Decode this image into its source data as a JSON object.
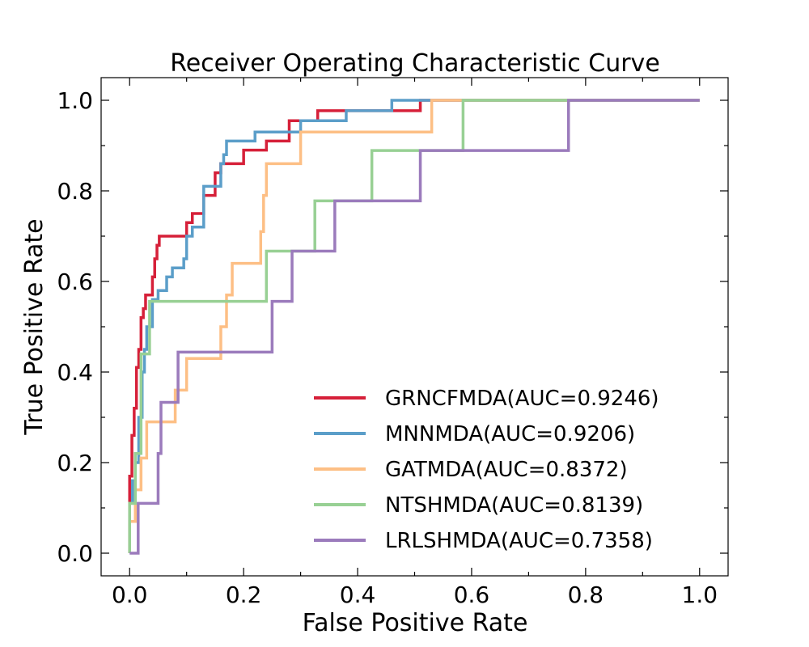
{
  "chart_data": {
    "type": "line",
    "title": "Receiver Operating Characteristic Curve",
    "xlabel": "False Positive Rate",
    "ylabel": "True Positive Rate",
    "xlim": [
      -0.05,
      1.05
    ],
    "ylim": [
      -0.05,
      1.05
    ],
    "xticks": [
      0.0,
      0.2,
      0.4,
      0.6,
      0.8,
      1.0
    ],
    "yticks": [
      0.0,
      0.2,
      0.4,
      0.6,
      0.8,
      1.0
    ],
    "x_tick_labels": [
      "0.0",
      "0.2",
      "0.4",
      "0.6",
      "0.8",
      "1.0"
    ],
    "y_tick_labels": [
      "0.0",
      "0.2",
      "0.4",
      "0.6",
      "0.8",
      "1.0"
    ],
    "minor_tick_step": 0.1,
    "legend_position": "lower-right",
    "grid": false,
    "series": [
      {
        "name": "GRNCFMDA(AUC=0.9246)",
        "color": "#d62039",
        "x": [
          0.0,
          0.0,
          0.004,
          0.004,
          0.008,
          0.008,
          0.012,
          0.012,
          0.016,
          0.016,
          0.02,
          0.02,
          0.024,
          0.024,
          0.028,
          0.028,
          0.032,
          0.032,
          0.04,
          0.04,
          0.044,
          0.044,
          0.048,
          0.048,
          0.052,
          0.052,
          0.1,
          0.1,
          0.11,
          0.11,
          0.13,
          0.13,
          0.15,
          0.15,
          0.16,
          0.16,
          0.17,
          0.17,
          0.18,
          0.18,
          0.2,
          0.2,
          0.22,
          0.22,
          0.24,
          0.24,
          0.28,
          0.28,
          0.33,
          0.33,
          0.36,
          0.36,
          0.51,
          0.51,
          0.54,
          0.59,
          0.77,
          1.0
        ],
        "y": [
          0.0,
          0.17,
          0.17,
          0.26,
          0.26,
          0.32,
          0.32,
          0.41,
          0.41,
          0.45,
          0.45,
          0.52,
          0.52,
          0.54,
          0.54,
          0.57,
          0.57,
          0.57,
          0.57,
          0.61,
          0.61,
          0.65,
          0.65,
          0.68,
          0.68,
          0.7,
          0.7,
          0.73,
          0.73,
          0.75,
          0.75,
          0.79,
          0.79,
          0.84,
          0.84,
          0.86,
          0.86,
          0.86,
          0.86,
          0.86,
          0.86,
          0.89,
          0.89,
          0.89,
          0.89,
          0.91,
          0.91,
          0.955,
          0.955,
          0.977,
          0.977,
          0.977,
          0.977,
          1.0,
          1.0,
          1.0,
          1.0,
          1.0
        ]
      },
      {
        "name": "MNNMDA(AUC=0.9206)",
        "color": "#5b9ec9",
        "x": [
          0.0,
          0.0,
          0.005,
          0.005,
          0.01,
          0.01,
          0.016,
          0.016,
          0.022,
          0.022,
          0.026,
          0.026,
          0.03,
          0.03,
          0.04,
          0.04,
          0.05,
          0.05,
          0.065,
          0.065,
          0.075,
          0.075,
          0.095,
          0.095,
          0.1,
          0.1,
          0.11,
          0.11,
          0.13,
          0.13,
          0.16,
          0.16,
          0.165,
          0.165,
          0.17,
          0.17,
          0.2,
          0.2,
          0.22,
          0.22,
          0.3,
          0.3,
          0.38,
          0.38,
          0.46,
          0.46,
          0.54,
          0.59,
          0.77,
          1.0
        ],
        "y": [
          0.0,
          0.11,
          0.11,
          0.16,
          0.16,
          0.2,
          0.2,
          0.3,
          0.3,
          0.4,
          0.4,
          0.45,
          0.45,
          0.5,
          0.5,
          0.56,
          0.56,
          0.58,
          0.58,
          0.61,
          0.61,
          0.63,
          0.63,
          0.65,
          0.65,
          0.7,
          0.7,
          0.72,
          0.72,
          0.81,
          0.81,
          0.86,
          0.86,
          0.88,
          0.88,
          0.91,
          0.91,
          0.91,
          0.91,
          0.93,
          0.93,
          0.955,
          0.955,
          0.977,
          0.977,
          1.0,
          1.0,
          1.0,
          1.0,
          1.0
        ]
      },
      {
        "name": "GATMDA(AUC=0.8372)",
        "color": "#fdbf85",
        "x": [
          0.0,
          0.0,
          0.01,
          0.01,
          0.02,
          0.02,
          0.03,
          0.03,
          0.08,
          0.08,
          0.1,
          0.1,
          0.16,
          0.16,
          0.17,
          0.17,
          0.18,
          0.18,
          0.23,
          0.23,
          0.235,
          0.235,
          0.24,
          0.24,
          0.3,
          0.3,
          0.53,
          0.53,
          0.59,
          0.77,
          1.0
        ],
        "y": [
          0.0,
          0.07,
          0.07,
          0.14,
          0.14,
          0.21,
          0.21,
          0.29,
          0.29,
          0.36,
          0.36,
          0.43,
          0.43,
          0.5,
          0.5,
          0.57,
          0.57,
          0.64,
          0.64,
          0.71,
          0.71,
          0.79,
          0.79,
          0.86,
          0.86,
          0.93,
          0.93,
          1.0,
          1.0,
          1.0,
          1.0
        ]
      },
      {
        "name": "NTSHMDA(AUC=0.8139)",
        "color": "#98d094",
        "x": [
          0.0,
          0.0,
          0.01,
          0.01,
          0.02,
          0.02,
          0.025,
          0.025,
          0.035,
          0.035,
          0.24,
          0.24,
          0.325,
          0.325,
          0.425,
          0.425,
          0.585,
          0.585,
          0.77,
          1.0
        ],
        "y": [
          0.0,
          0.11,
          0.11,
          0.22,
          0.22,
          0.44,
          0.44,
          0.44,
          0.44,
          0.556,
          0.556,
          0.667,
          0.667,
          0.778,
          0.778,
          0.889,
          0.889,
          1.0,
          1.0,
          1.0
        ]
      },
      {
        "name": "LRLSHMDA(AUC=0.7358)",
        "color": "#9b7bbc",
        "x": [
          0.0,
          0.0,
          0.015,
          0.015,
          0.05,
          0.05,
          0.055,
          0.055,
          0.085,
          0.085,
          0.25,
          0.25,
          0.285,
          0.285,
          0.36,
          0.36,
          0.51,
          0.51,
          0.77,
          0.77,
          1.0
        ],
        "y": [
          0.0,
          0.0,
          0.0,
          0.11,
          0.11,
          0.22,
          0.22,
          0.333,
          0.333,
          0.444,
          0.444,
          0.556,
          0.556,
          0.667,
          0.667,
          0.778,
          0.778,
          0.889,
          0.889,
          1.0,
          1.0
        ]
      }
    ]
  }
}
